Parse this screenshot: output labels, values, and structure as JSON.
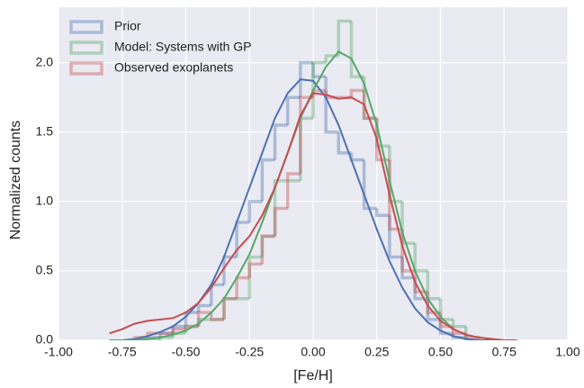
{
  "chart_data": {
    "type": "histogram",
    "xlabel": "[Fe/H]",
    "ylabel": "Normalized counts",
    "xlim": [
      -1.0,
      1.0
    ],
    "ylim": [
      0,
      2.4
    ],
    "xticks": [
      {
        "value": -1.0,
        "label": "-1.00"
      },
      {
        "value": -0.75,
        "label": "-0.75"
      },
      {
        "value": -0.5,
        "label": "-0.50"
      },
      {
        "value": -0.25,
        "label": "-0.25"
      },
      {
        "value": 0,
        "label": "0.00"
      },
      {
        "value": 0.25,
        "label": "0.25"
      },
      {
        "value": 0.5,
        "label": "0.50"
      },
      {
        "value": 0.75,
        "label": "0.75"
      },
      {
        "value": 1.0,
        "label": "1.00"
      }
    ],
    "yticks": [
      {
        "value": 0,
        "label": "0.0"
      },
      {
        "value": 0.5,
        "label": "0.5"
      },
      {
        "value": 1.0,
        "label": "1.0"
      },
      {
        "value": 1.5,
        "label": "1.5"
      },
      {
        "value": 2.0,
        "label": "2.0"
      }
    ],
    "grid": true,
    "legend": "upper left",
    "bins": [
      -0.7,
      -0.65,
      -0.6,
      -0.55,
      -0.5,
      -0.45,
      -0.4,
      -0.35,
      -0.3,
      -0.25,
      -0.2,
      -0.15,
      -0.1,
      -0.05,
      0,
      0.05,
      0.1,
      0.15,
      0.2,
      0.25,
      0.3,
      0.35,
      0.4,
      0.45,
      0.5,
      0.55,
      0.6,
      0.65
    ],
    "kde_x": [
      -0.8,
      -0.75,
      -0.7,
      -0.65,
      -0.6,
      -0.55,
      -0.5,
      -0.45,
      -0.4,
      -0.35,
      -0.3,
      -0.25,
      -0.2,
      -0.15,
      -0.1,
      -0.05,
      0,
      0.05,
      0.1,
      0.15,
      0.2,
      0.25,
      0.3,
      0.35,
      0.4,
      0.45,
      0.5,
      0.55,
      0.6,
      0.65,
      0.7,
      0.75,
      0.8
    ],
    "series": [
      {
        "name": "Prior",
        "color": "#4c72b0",
        "values": [
          0,
          0.02,
          0.05,
          0.1,
          0.2,
          0.25,
          0.4,
          0.6,
          0.85,
          1.0,
          1.3,
          1.55,
          1.75,
          2.0,
          1.9,
          1.5,
          1.35,
          1.3,
          0.95,
          0.9,
          0.6,
          0.45,
          0.3,
          0.15,
          0.05,
          0.02,
          0
        ],
        "kde_values": [
          0,
          0,
          0.01,
          0.03,
          0.06,
          0.1,
          0.17,
          0.27,
          0.4,
          0.6,
          0.85,
          1.1,
          1.35,
          1.6,
          1.78,
          1.88,
          1.87,
          1.75,
          1.55,
          1.3,
          1.05,
          0.8,
          0.57,
          0.38,
          0.23,
          0.13,
          0.07,
          0.03,
          0.01,
          0,
          0,
          0,
          0
        ]
      },
      {
        "name": "Model: Systems with GP",
        "color": "#55a868",
        "values": [
          0,
          0,
          0.02,
          0.05,
          0.1,
          0.15,
          0.15,
          0.3,
          0.3,
          0.6,
          0.75,
          1.15,
          1.15,
          1.6,
          2.0,
          2.05,
          2.3,
          1.9,
          1.6,
          1.4,
          1.0,
          0.7,
          0.5,
          0.3,
          0.15,
          0.1,
          0
        ],
        "kde_values": [
          0,
          0,
          0,
          0.01,
          0.02,
          0.04,
          0.07,
          0.12,
          0.2,
          0.3,
          0.45,
          0.62,
          0.85,
          1.1,
          1.35,
          1.6,
          1.8,
          1.97,
          2.08,
          2.03,
          1.85,
          1.55,
          1.15,
          0.78,
          0.5,
          0.3,
          0.17,
          0.08,
          0.04,
          0.02,
          0.01,
          0,
          0
        ]
      },
      {
        "name": "Observed exoplanets",
        "color": "#c44e52",
        "values": [
          0.02,
          0.05,
          0.05,
          0.08,
          0.1,
          0.2,
          0.15,
          0.3,
          0.45,
          0.55,
          0.75,
          0.95,
          1.2,
          1.75,
          1.8,
          1.75,
          1.75,
          1.8,
          1.6,
          1.3,
          0.8,
          0.5,
          0.35,
          0.2,
          0.1,
          0.05,
          0.02
        ],
        "kde_values": [
          0.05,
          0.08,
          0.12,
          0.14,
          0.15,
          0.16,
          0.2,
          0.27,
          0.38,
          0.52,
          0.65,
          0.75,
          0.9,
          1.1,
          1.35,
          1.62,
          1.78,
          1.77,
          1.74,
          1.75,
          1.7,
          1.45,
          1.05,
          0.68,
          0.42,
          0.25,
          0.14,
          0.08,
          0.04,
          0.02,
          0.01,
          0,
          0
        ]
      }
    ]
  }
}
